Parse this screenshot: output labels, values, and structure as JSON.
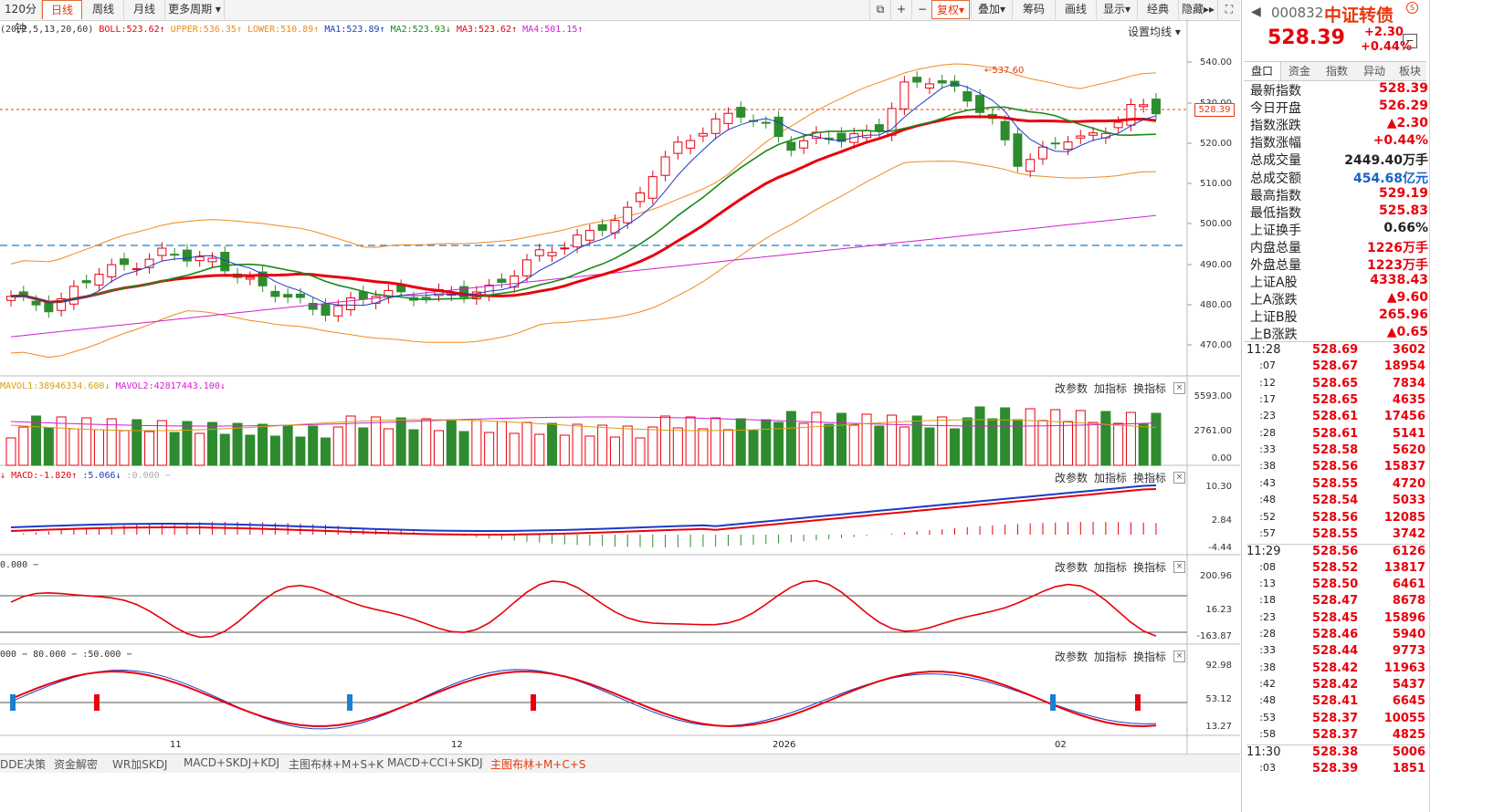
{
  "toolbar": {
    "periods": [
      "120分钟",
      "日线",
      "周线",
      "月线",
      "更多周期"
    ],
    "active_period": "日线",
    "buttons": [
      "复权",
      "叠加",
      "筹码",
      "画线",
      "显示",
      "经典",
      "隐藏"
    ]
  },
  "main_indicator": {
    "params": "(20,2,5,13,20,60)",
    "boll": "BOLL:523.62",
    "upper": "UPPER:536.35",
    "lower": "LOWER:510.89",
    "ma1": "MA1:523.89",
    "ma2": "MA2:523.93",
    "ma3": "MA3:523.62",
    "ma4": "MA4:501.15",
    "settings": "设置均线",
    "high_label": "537.60",
    "last_price_label": "528.39",
    "y_ticks": [
      "540.00",
      "530.00",
      "520.00",
      "510.00",
      "500.00",
      "490.00",
      "480.00",
      "470.00"
    ]
  },
  "volume_panel": {
    "mavol1": "MAVOL1:38946334.600",
    "mavol2": "MAVOL2:42817443.100",
    "y_ticks": [
      "5593.00",
      "2761.00",
      "0.00"
    ]
  },
  "macd_panel": {
    "macd": "MACD:-1.820",
    "dif": ":5.066",
    "zero": ":0.000",
    "y_ticks": [
      "10.30",
      "2.84",
      "-4.44"
    ]
  },
  "cci_panel": {
    "label": "0.000",
    "y_ticks": [
      "200.96",
      "16.23",
      "-163.87"
    ]
  },
  "kdj_panel": {
    "label1": "000",
    "label2": "80.000",
    "label3": ":50.000",
    "y_ticks": [
      "92.98",
      "53.12",
      "13.27"
    ]
  },
  "panel_buttons": {
    "params": "改参数",
    "add": "加指标",
    "switch": "换指标",
    "close": "×"
  },
  "x_axis": {
    "labels": [
      "11",
      "12",
      "2026",
      "02"
    ]
  },
  "bottom_tabs": [
    "DDE决策",
    "资金解密",
    "WR加SKDJ",
    "MACD+SKDJ+KDJ",
    "主图布林+M+S+K",
    "MACD+CCI+SKDJ",
    "主图布林+M+C+S"
  ],
  "active_bottom_tab": "主图布林+M+C+S",
  "quote": {
    "code": "000832",
    "name": "中证转债",
    "price": "528.39",
    "change": "+2.30",
    "change_pct": "+0.44%",
    "tabs": [
      "盘口",
      "资金",
      "指数",
      "异动",
      "板块"
    ],
    "fields": [
      {
        "k": "最新指数",
        "v": "528.39",
        "c": "red"
      },
      {
        "k": "今日开盘",
        "v": "526.29",
        "c": "red"
      },
      {
        "k": "指数涨跌",
        "v": "▲2.30",
        "c": "red"
      },
      {
        "k": "指数涨幅",
        "v": "+0.44%",
        "c": "red"
      },
      {
        "k": "总成交量",
        "v": "2449.40万手",
        "c": "black"
      },
      {
        "k": "总成交额",
        "v": "454.68亿元",
        "c": "blue"
      },
      {
        "k": "最高指数",
        "v": "529.19",
        "c": "red"
      },
      {
        "k": "最低指数",
        "v": "525.83",
        "c": "red"
      },
      {
        "k": "上证换手",
        "v": "0.66%",
        "c": "black"
      },
      {
        "k": "内盘总量",
        "v": "1226万手",
        "c": "red"
      },
      {
        "k": "外盘总量",
        "v": "1223万手",
        "c": "red"
      },
      {
        "k": "上证A股",
        "v": "4338.43",
        "c": "red"
      },
      {
        "k": "上A涨跌",
        "v": "▲9.60",
        "c": "red"
      },
      {
        "k": "上证B股",
        "v": "265.96",
        "c": "red"
      },
      {
        "k": "上B涨跌",
        "v": "▲0.65",
        "c": "red"
      }
    ],
    "ticks": [
      {
        "t": "11:28",
        "p": "528.69",
        "q": "3602"
      },
      {
        "t": ":07",
        "p": "528.67",
        "q": "18954"
      },
      {
        "t": ":12",
        "p": "528.65",
        "q": "7834"
      },
      {
        "t": ":17",
        "p": "528.65",
        "q": "4635"
      },
      {
        "t": ":23",
        "p": "528.61",
        "q": "17456"
      },
      {
        "t": ":28",
        "p": "528.61",
        "q": "5141"
      },
      {
        "t": ":33",
        "p": "528.58",
        "q": "5620"
      },
      {
        "t": ":38",
        "p": "528.56",
        "q": "15837"
      },
      {
        "t": ":43",
        "p": "528.55",
        "q": "4720"
      },
      {
        "t": ":48",
        "p": "528.54",
        "q": "5033"
      },
      {
        "t": ":52",
        "p": "528.56",
        "q": "12085"
      },
      {
        "t": ":57",
        "p": "528.55",
        "q": "3742"
      },
      {
        "t": "11:29",
        "p": "528.56",
        "q": "6126"
      },
      {
        "t": ":08",
        "p": "528.52",
        "q": "13817"
      },
      {
        "t": ":13",
        "p": "528.50",
        "q": "6461"
      },
      {
        "t": ":18",
        "p": "528.47",
        "q": "8678"
      },
      {
        "t": ":23",
        "p": "528.45",
        "q": "15896"
      },
      {
        "t": ":28",
        "p": "528.46",
        "q": "5940"
      },
      {
        "t": ":33",
        "p": "528.44",
        "q": "9773"
      },
      {
        "t": ":38",
        "p": "528.42",
        "q": "11963"
      },
      {
        "t": ":42",
        "p": "528.42",
        "q": "5437"
      },
      {
        "t": ":48",
        "p": "528.41",
        "q": "6645"
      },
      {
        "t": ":53",
        "p": "528.37",
        "q": "10055"
      },
      {
        "t": ":58",
        "p": "528.37",
        "q": "4825"
      },
      {
        "t": "11:30",
        "p": "528.38",
        "q": "5006"
      },
      {
        "t": ":03",
        "p": "528.39",
        "q": "1851"
      }
    ]
  },
  "colors": {
    "up": "#e8000b",
    "down": "#2e8b2e",
    "accent": "#e8380d",
    "blue": "#1762c8"
  }
}
